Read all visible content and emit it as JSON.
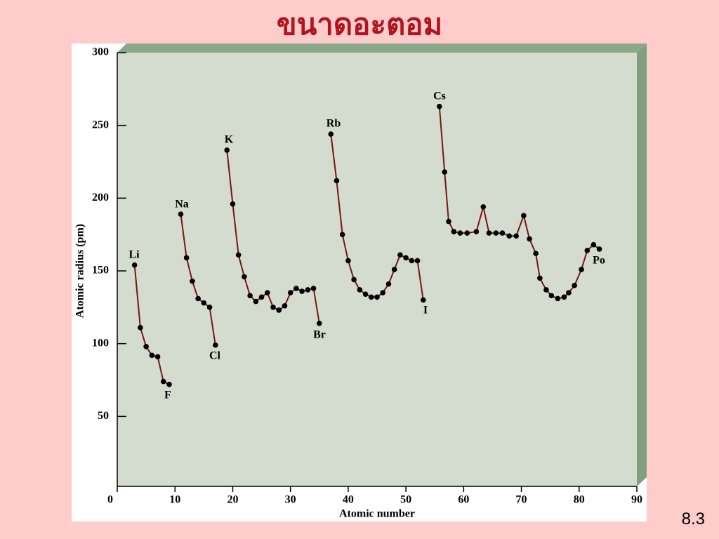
{
  "slide_title": "ขนาดอะตอม",
  "slide_number": "8.3",
  "chart_data": {
    "type": "line",
    "xlabel": "Atomic number",
    "ylabel": "Atomic radius (pm)",
    "xlim": [
      0,
      90
    ],
    "ylim": [
      0,
      300
    ],
    "xticks": [
      0,
      10,
      20,
      30,
      40,
      50,
      60,
      70,
      80,
      90
    ],
    "yticks": [
      50,
      100,
      150,
      200,
      250,
      300
    ],
    "series": [
      {
        "name": "Atomic radius",
        "color": "#7a1414",
        "x": [
          3,
          4,
          5,
          6,
          7,
          8,
          9,
          10,
          11,
          12,
          13,
          14,
          15,
          16,
          17,
          18,
          19,
          20,
          21,
          22,
          23,
          24,
          25,
          26,
          27,
          28,
          29,
          30,
          31,
          32,
          33,
          34,
          35,
          36,
          37,
          38,
          39,
          40,
          41,
          42,
          43,
          44,
          45,
          46,
          47,
          48,
          49,
          50,
          51,
          52,
          53,
          54,
          55.8,
          56.7,
          57.4,
          58.3,
          59.4,
          60.6,
          62.2,
          63.4,
          64.4,
          65.6,
          66.7,
          67.9,
          69.1,
          70.4,
          71.4,
          72.5,
          73.2,
          74.3,
          75.2,
          76.3,
          77.4,
          78.2,
          79.2,
          80.4,
          81.4,
          82.5,
          83.5
        ],
        "values": [
          154,
          111,
          98,
          92,
          91,
          74,
          72,
          null,
          189,
          159,
          143,
          131,
          128,
          125,
          99,
          null,
          233,
          196,
          161,
          146,
          133,
          129,
          132,
          135,
          125,
          123,
          126,
          135,
          138,
          136,
          137,
          138,
          114,
          null,
          244,
          212,
          175,
          157,
          144,
          137,
          134,
          132,
          132,
          135,
          141,
          151,
          161,
          159,
          157,
          157,
          130,
          null,
          263,
          218,
          184,
          177,
          176,
          176,
          177,
          194,
          176,
          176,
          176,
          174,
          174,
          188,
          172,
          162,
          145,
          137,
          133,
          131,
          132,
          135,
          140,
          151,
          164,
          168,
          165
        ]
      }
    ],
    "annotations": [
      "Li",
      "Na",
      "K",
      "Rb",
      "Cs",
      "F",
      "Cl",
      "Br",
      "I",
      "Po"
    ]
  }
}
